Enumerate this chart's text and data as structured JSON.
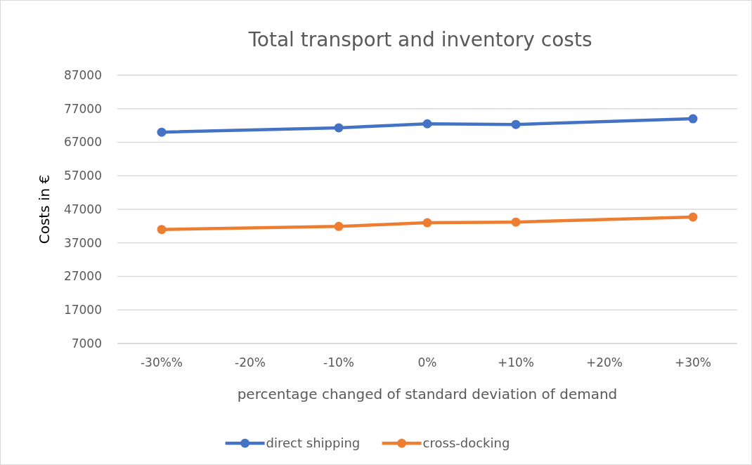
{
  "chart_data": {
    "type": "line",
    "title": "Total transport and inventory costs",
    "xlabel": "percentage changed of standard deviation of demand",
    "ylabel": "Costs in €",
    "categories": [
      "-30%%",
      "-20%",
      "-10%",
      "0%",
      "+10%",
      "+20%",
      "+30%"
    ],
    "series": [
      {
        "name": "direct shipping",
        "color": "#4472c4",
        "values": [
          70000,
          null,
          71300,
          72500,
          72300,
          null,
          74000
        ]
      },
      {
        "name": "cross-docking",
        "color": "#ed7d31",
        "values": [
          41000,
          null,
          41900,
          43000,
          43200,
          null,
          44700
        ]
      }
    ],
    "ylim": [
      7000,
      87000
    ],
    "yticks": [
      7000,
      17000,
      27000,
      37000,
      47000,
      57000,
      67000,
      77000,
      87000
    ],
    "grid": "y",
    "legend": "bottom",
    "marker": "circle",
    "line_style": "solid"
  }
}
